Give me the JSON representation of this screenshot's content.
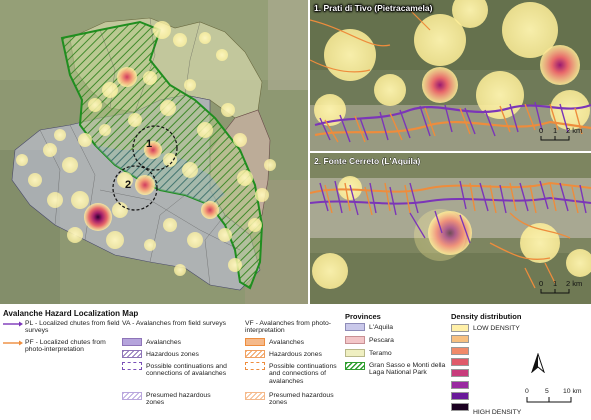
{
  "insets": [
    {
      "title": "1. Prati di Tivo (Pietracamela)",
      "scale_labels": [
        "0",
        "1",
        "2 km"
      ]
    },
    {
      "title": "2. Fonte Cerreto (L'Aquila)",
      "scale_labels": [
        "0",
        "1",
        "2 km"
      ]
    }
  ],
  "main_map": {
    "markers": [
      "1",
      "2"
    ]
  },
  "legend": {
    "title": "Avalanche Hazard Localization Map",
    "chutes": [
      {
        "label": "PL - Localized chutes from field surveys",
        "color": "#7b35b8"
      },
      {
        "label": "PF - Localized chutes from photo-interpretation",
        "color": "#ee8c3c"
      }
    ],
    "va": {
      "title": "VA - Avalanches from field surveys",
      "items": [
        "Avalanches",
        "Hazardous zones",
        "Possible continuations and connections of avalanches",
        "Presumed hazardous zones"
      ]
    },
    "vf": {
      "title": "VF - Avalanches from photo-interpretation",
      "items": [
        "Avalanches",
        "Hazardous zones",
        "Possible continuations and connections of avalanches",
        "Presumed hazardous zones"
      ]
    },
    "provinces": {
      "title": "Provinces",
      "items": [
        {
          "label": "L'Aquila",
          "color": "#c9c8ea"
        },
        {
          "label": "Pescara",
          "color": "#f3c6c8"
        },
        {
          "label": "Teramo",
          "color": "#efefc1"
        },
        {
          "label": "Gran Sasso e Monti della Laga National Park",
          "color": "#2e9e2e"
        }
      ]
    },
    "density": {
      "title": "Density distribution",
      "low_label": "LOW DENSITY",
      "high_label": "HIGH DENSITY",
      "colors": [
        "#fff0a8",
        "#f7c080",
        "#f08a6a",
        "#e05a6a",
        "#c83c7c",
        "#9a2aa0",
        "#6a1a9a",
        "#1a0020"
      ]
    },
    "north_label": "N",
    "scale_labels": [
      "0",
      "5",
      "10 km"
    ]
  }
}
